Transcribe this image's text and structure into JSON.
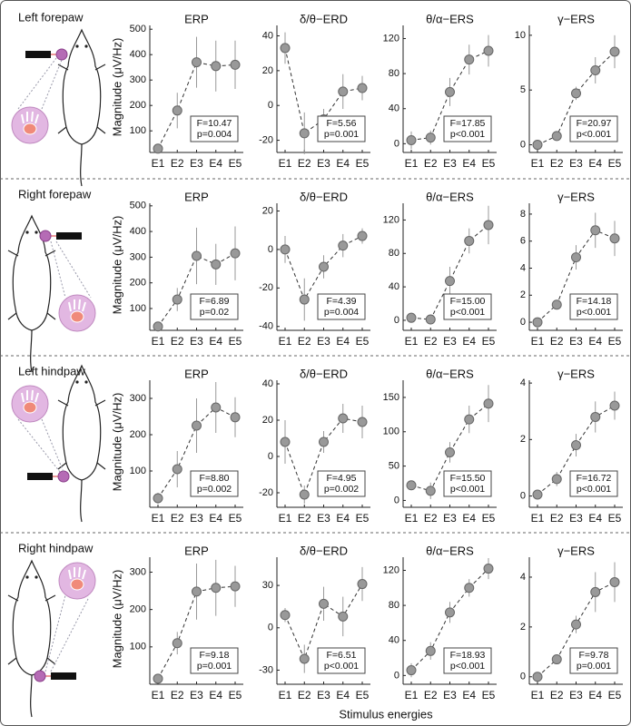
{
  "rows": [
    "Left forepaw",
    "Right forepaw",
    "Left hindpaw",
    "Right hindpaw"
  ],
  "y_label": "Magnitude (μV/Hz)",
  "x_label": "Stimulus energies",
  "chart_data": [
    {
      "type": "line",
      "title": "ERP",
      "categories": [
        "E1",
        "E2",
        "E3",
        "E4",
        "E5"
      ],
      "values": [
        30,
        180,
        370,
        355,
        360
      ],
      "errors": [
        8,
        70,
        100,
        100,
        95
      ],
      "color": "#999999",
      "ylim": [
        15,
        515
      ],
      "yticks": [
        100,
        200,
        300,
        400,
        500
      ],
      "annotation": [
        "F=10.47",
        "p=0.004"
      ]
    },
    {
      "type": "line",
      "title": "δ/θ−ERD",
      "categories": [
        "E1",
        "E2",
        "E3",
        "E4",
        "E5"
      ],
      "values": [
        33,
        -16,
        -8,
        8,
        10
      ],
      "errors": [
        9,
        12,
        6,
        10,
        7
      ],
      "color": "#999999",
      "ylim": [
        -27,
        46
      ],
      "yticks": [
        -20,
        0,
        20,
        40
      ],
      "annotation": [
        "F=5.56",
        "p=0.001"
      ]
    },
    {
      "type": "line",
      "title": "θ/α−ERS",
      "categories": [
        "E1",
        "E2",
        "E3",
        "E4",
        "E5"
      ],
      "values": [
        4,
        7,
        59,
        96,
        106
      ],
      "errors": [
        10,
        8,
        16,
        17,
        18
      ],
      "color": "#999999",
      "ylim": [
        -10,
        135
      ],
      "yticks": [
        0,
        40,
        80,
        120
      ],
      "annotation": [
        "F=17.85",
        "p<0.001"
      ]
    },
    {
      "type": "line",
      "title": "γ−ERS",
      "categories": [
        "E1",
        "E2",
        "E3",
        "E4",
        "E5"
      ],
      "values": [
        0,
        0.8,
        4.7,
        6.8,
        8.5
      ],
      "errors": [
        0.3,
        0.3,
        0.6,
        1.2,
        1.5
      ],
      "color": "#999999",
      "ylim": [
        -0.7,
        10.9
      ],
      "yticks": [
        0,
        5,
        10
      ],
      "annotation": [
        "F=20.97",
        "p<0.001"
      ]
    },
    {
      "type": "line",
      "title": "ERP",
      "categories": [
        "E1",
        "E2",
        "E3",
        "E4",
        "E5"
      ],
      "values": [
        30,
        135,
        305,
        272,
        315
      ],
      "errors": [
        10,
        45,
        110,
        80,
        105
      ],
      "color": "#999999",
      "ylim": [
        15,
        510
      ],
      "yticks": [
        100,
        200,
        300,
        400,
        500
      ],
      "annotation": [
        "F=6.89",
        "p=0.02"
      ]
    },
    {
      "type": "line",
      "title": "δ/θ−ERD",
      "categories": [
        "E1",
        "E2",
        "E3",
        "E4",
        "E5"
      ],
      "values": [
        0,
        -26,
        -9,
        2,
        7
      ],
      "errors": [
        7,
        11,
        6,
        6,
        4
      ],
      "color": "#999999",
      "ylim": [
        -42,
        24
      ],
      "yticks": [
        -40,
        -20,
        0,
        20
      ],
      "annotation": [
        "F=4.39",
        "p=0.004"
      ]
    },
    {
      "type": "line",
      "title": "θ/α−ERS",
      "categories": [
        "E1",
        "E2",
        "E3",
        "E4",
        "E5"
      ],
      "values": [
        3,
        1,
        47,
        95,
        114
      ],
      "errors": [
        6,
        6,
        17,
        15,
        23
      ],
      "color": "#999999",
      "ylim": [
        -12,
        140
      ],
      "yticks": [
        0,
        40,
        80,
        120
      ],
      "annotation": [
        "F=15.00",
        "p<0.001"
      ]
    },
    {
      "type": "line",
      "title": "γ−ERS",
      "categories": [
        "E1",
        "E2",
        "E3",
        "E4",
        "E5"
      ],
      "values": [
        0,
        1.3,
        4.8,
        6.8,
        6.2
      ],
      "errors": [
        0.1,
        0.2,
        0.9,
        1.3,
        1.3
      ],
      "color": "#999999",
      "ylim": [
        -0.6,
        8.8
      ],
      "yticks": [
        0,
        2,
        4,
        6,
        8
      ],
      "annotation": [
        "F=14.18",
        "p<0.001"
      ]
    },
    {
      "type": "line",
      "title": "ERP",
      "categories": [
        "E1",
        "E2",
        "E3",
        "E4",
        "E5"
      ],
      "values": [
        25,
        105,
        225,
        275,
        248
      ],
      "errors": [
        15,
        50,
        75,
        70,
        55
      ],
      "color": "#999999",
      "ylim": [
        0,
        350
      ],
      "yticks": [
        100,
        200,
        300
      ],
      "annotation": [
        "F=8.80",
        "p=0.002"
      ]
    },
    {
      "type": "line",
      "title": "δ/θ−ERD",
      "categories": [
        "E1",
        "E2",
        "E3",
        "E4",
        "E5"
      ],
      "values": [
        8,
        -21,
        8,
        21,
        19
      ],
      "errors": [
        12,
        5,
        6,
        8,
        9
      ],
      "color": "#999999",
      "ylim": [
        -28,
        42
      ],
      "yticks": [
        -20,
        0,
        20,
        40
      ],
      "annotation": [
        "F=4.95",
        "p=0.002"
      ]
    },
    {
      "type": "line",
      "title": "θ/α−ERS",
      "categories": [
        "E1",
        "E2",
        "E3",
        "E4",
        "E5"
      ],
      "values": [
        22,
        14,
        70,
        118,
        141
      ],
      "errors": [
        7,
        12,
        15,
        20,
        27
      ],
      "color": "#999999",
      "ylim": [
        -10,
        175
      ],
      "yticks": [
        0,
        50,
        100,
        150
      ],
      "annotation": [
        "F=15.50",
        "p<0.001"
      ]
    },
    {
      "type": "line",
      "title": "γ−ERS",
      "categories": [
        "E1",
        "E2",
        "E3",
        "E4",
        "E5"
      ],
      "values": [
        0.05,
        0.6,
        1.8,
        2.8,
        3.2
      ],
      "errors": [
        0.05,
        0.25,
        0.4,
        0.55,
        0.5
      ],
      "color": "#999999",
      "ylim": [
        -0.4,
        4.1
      ],
      "yticks": [
        0,
        2,
        4
      ],
      "annotation": [
        "F=16.72",
        "p<0.001"
      ]
    },
    {
      "type": "line",
      "title": "ERP",
      "categories": [
        "E1",
        "E2",
        "E3",
        "E4",
        "E5"
      ],
      "values": [
        15,
        110,
        248,
        258,
        262
      ],
      "errors": [
        5,
        30,
        75,
        75,
        55
      ],
      "color": "#999999",
      "ylim": [
        0,
        340
      ],
      "yticks": [
        100,
        200,
        300
      ],
      "annotation": [
        "F=9.18",
        "p=0.001"
      ]
    },
    {
      "type": "line",
      "title": "δ/θ−ERD",
      "categories": [
        "E1",
        "E2",
        "E3",
        "E4",
        "E5"
      ],
      "values": [
        9,
        -22,
        17,
        8,
        31
      ],
      "errors": [
        5,
        10,
        12,
        14,
        12
      ],
      "color": "#999999",
      "ylim": [
        -40,
        50
      ],
      "yticks": [
        -30,
        0,
        30
      ],
      "annotation": [
        "F=6.51",
        "p<0.001"
      ]
    },
    {
      "type": "line",
      "title": "θ/α−ERS",
      "categories": [
        "E1",
        "E2",
        "E3",
        "E4",
        "E5"
      ],
      "values": [
        6,
        28,
        72,
        100,
        122
      ],
      "errors": [
        8,
        10,
        12,
        10,
        12
      ],
      "color": "#999999",
      "ylim": [
        -10,
        135
      ],
      "yticks": [
        0,
        40,
        80,
        120
      ],
      "annotation": [
        "F=18.93",
        "p<0.001"
      ]
    },
    {
      "type": "line",
      "title": "γ−ERS",
      "categories": [
        "E1",
        "E2",
        "E3",
        "E4",
        "E5"
      ],
      "values": [
        0,
        0.7,
        2.1,
        3.4,
        3.8
      ],
      "errors": [
        0.05,
        0.2,
        0.35,
        0.8,
        0.8
      ],
      "color": "#999999",
      "ylim": [
        -0.3,
        4.8
      ],
      "yticks": [
        0,
        2,
        4
      ],
      "annotation": [
        "F=9.78",
        "p=0.001"
      ]
    }
  ]
}
